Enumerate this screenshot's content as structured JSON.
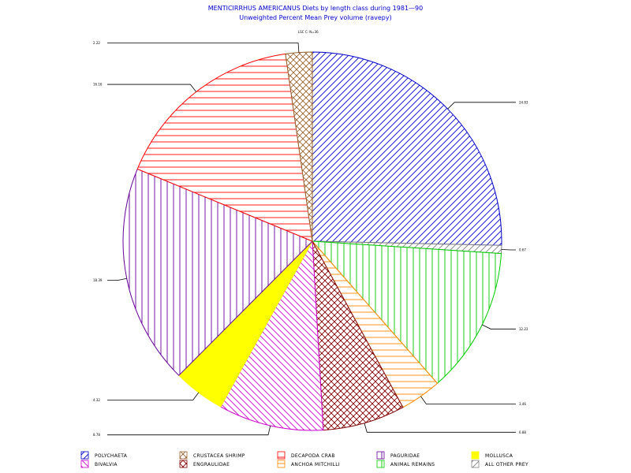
{
  "chart_data": {
    "type": "pie",
    "title": "MENTICIRRHUS AMERICANUS Diets by length class during 1981—90",
    "subtitle": "Unweighted Percent Mean Prey volume (ravepy)",
    "header_label": "LSC C: N=36",
    "series": [
      {
        "name": "POLYCHAETA",
        "value": 24.83,
        "label": "24.83",
        "color": "#0000cc",
        "pattern": "diag-right"
      },
      {
        "name": "ALL OTHER PREY",
        "value": 0.67,
        "label": "0.67",
        "color": "#808080",
        "pattern": "diag-right"
      },
      {
        "name": "ANIMAL REMAINS",
        "value": 12.23,
        "label": "12.23",
        "color": "#00cc00",
        "pattern": "vertical"
      },
      {
        "name": "ANCHOA MITCHILLI",
        "value": 3.46,
        "label": "3.46",
        "color": "#ff8800",
        "pattern": "horizontal"
      },
      {
        "name": "ENGRAULIDAE",
        "value": 6.88,
        "label": "6.88",
        "color": "#800000",
        "pattern": "cross"
      },
      {
        "name": "BIVALVIA",
        "value": 8.78,
        "label": "8.78",
        "color": "#cc00cc",
        "pattern": "diag-left"
      },
      {
        "name": "MOLLUSCA",
        "value": 4.32,
        "label": "4.32",
        "color": "#ffff00",
        "pattern": "solid"
      },
      {
        "name": "PAGURIDAE",
        "value": 18.39,
        "label": "18.39",
        "color": "#660099",
        "pattern": "vertical"
      },
      {
        "name": "DECAPODA CRAB",
        "value": 16.16,
        "label": "16.16",
        "color": "#ff0000",
        "pattern": "horizontal"
      },
      {
        "name": "CRUSTACEA SHRIMP",
        "value": 2.22,
        "label": "2.22",
        "color": "#996633",
        "pattern": "cross"
      }
    ],
    "legend": [
      {
        "name": "POLYCHAETA",
        "color": "#0000cc",
        "pattern": "diag-right"
      },
      {
        "name": "BIVALVIA",
        "color": "#cc00cc",
        "pattern": "diag-left"
      },
      {
        "name": "CRUSTACEA SHRIMP",
        "color": "#996633",
        "pattern": "cross"
      },
      {
        "name": "ENGRAULIDAE",
        "color": "#800000",
        "pattern": "cross"
      },
      {
        "name": "DECAPODA CRAB",
        "color": "#ff0000",
        "pattern": "horizontal"
      },
      {
        "name": "ANCHOA MITCHILLI",
        "color": "#ff8800",
        "pattern": "horizontal"
      },
      {
        "name": "PAGURIDAE",
        "color": "#660099",
        "pattern": "vertical"
      },
      {
        "name": "ANIMAL REMAINS",
        "color": "#00cc00",
        "pattern": "vertical"
      },
      {
        "name": "MOLLUSCA",
        "color": "#ffff00",
        "pattern": "solid"
      },
      {
        "name": "ALL OTHER PREY",
        "color": "#808080",
        "pattern": "diag-right"
      }
    ],
    "legend_placement": "bottom",
    "start_angle_deg": 0,
    "direction": "clockwise"
  }
}
